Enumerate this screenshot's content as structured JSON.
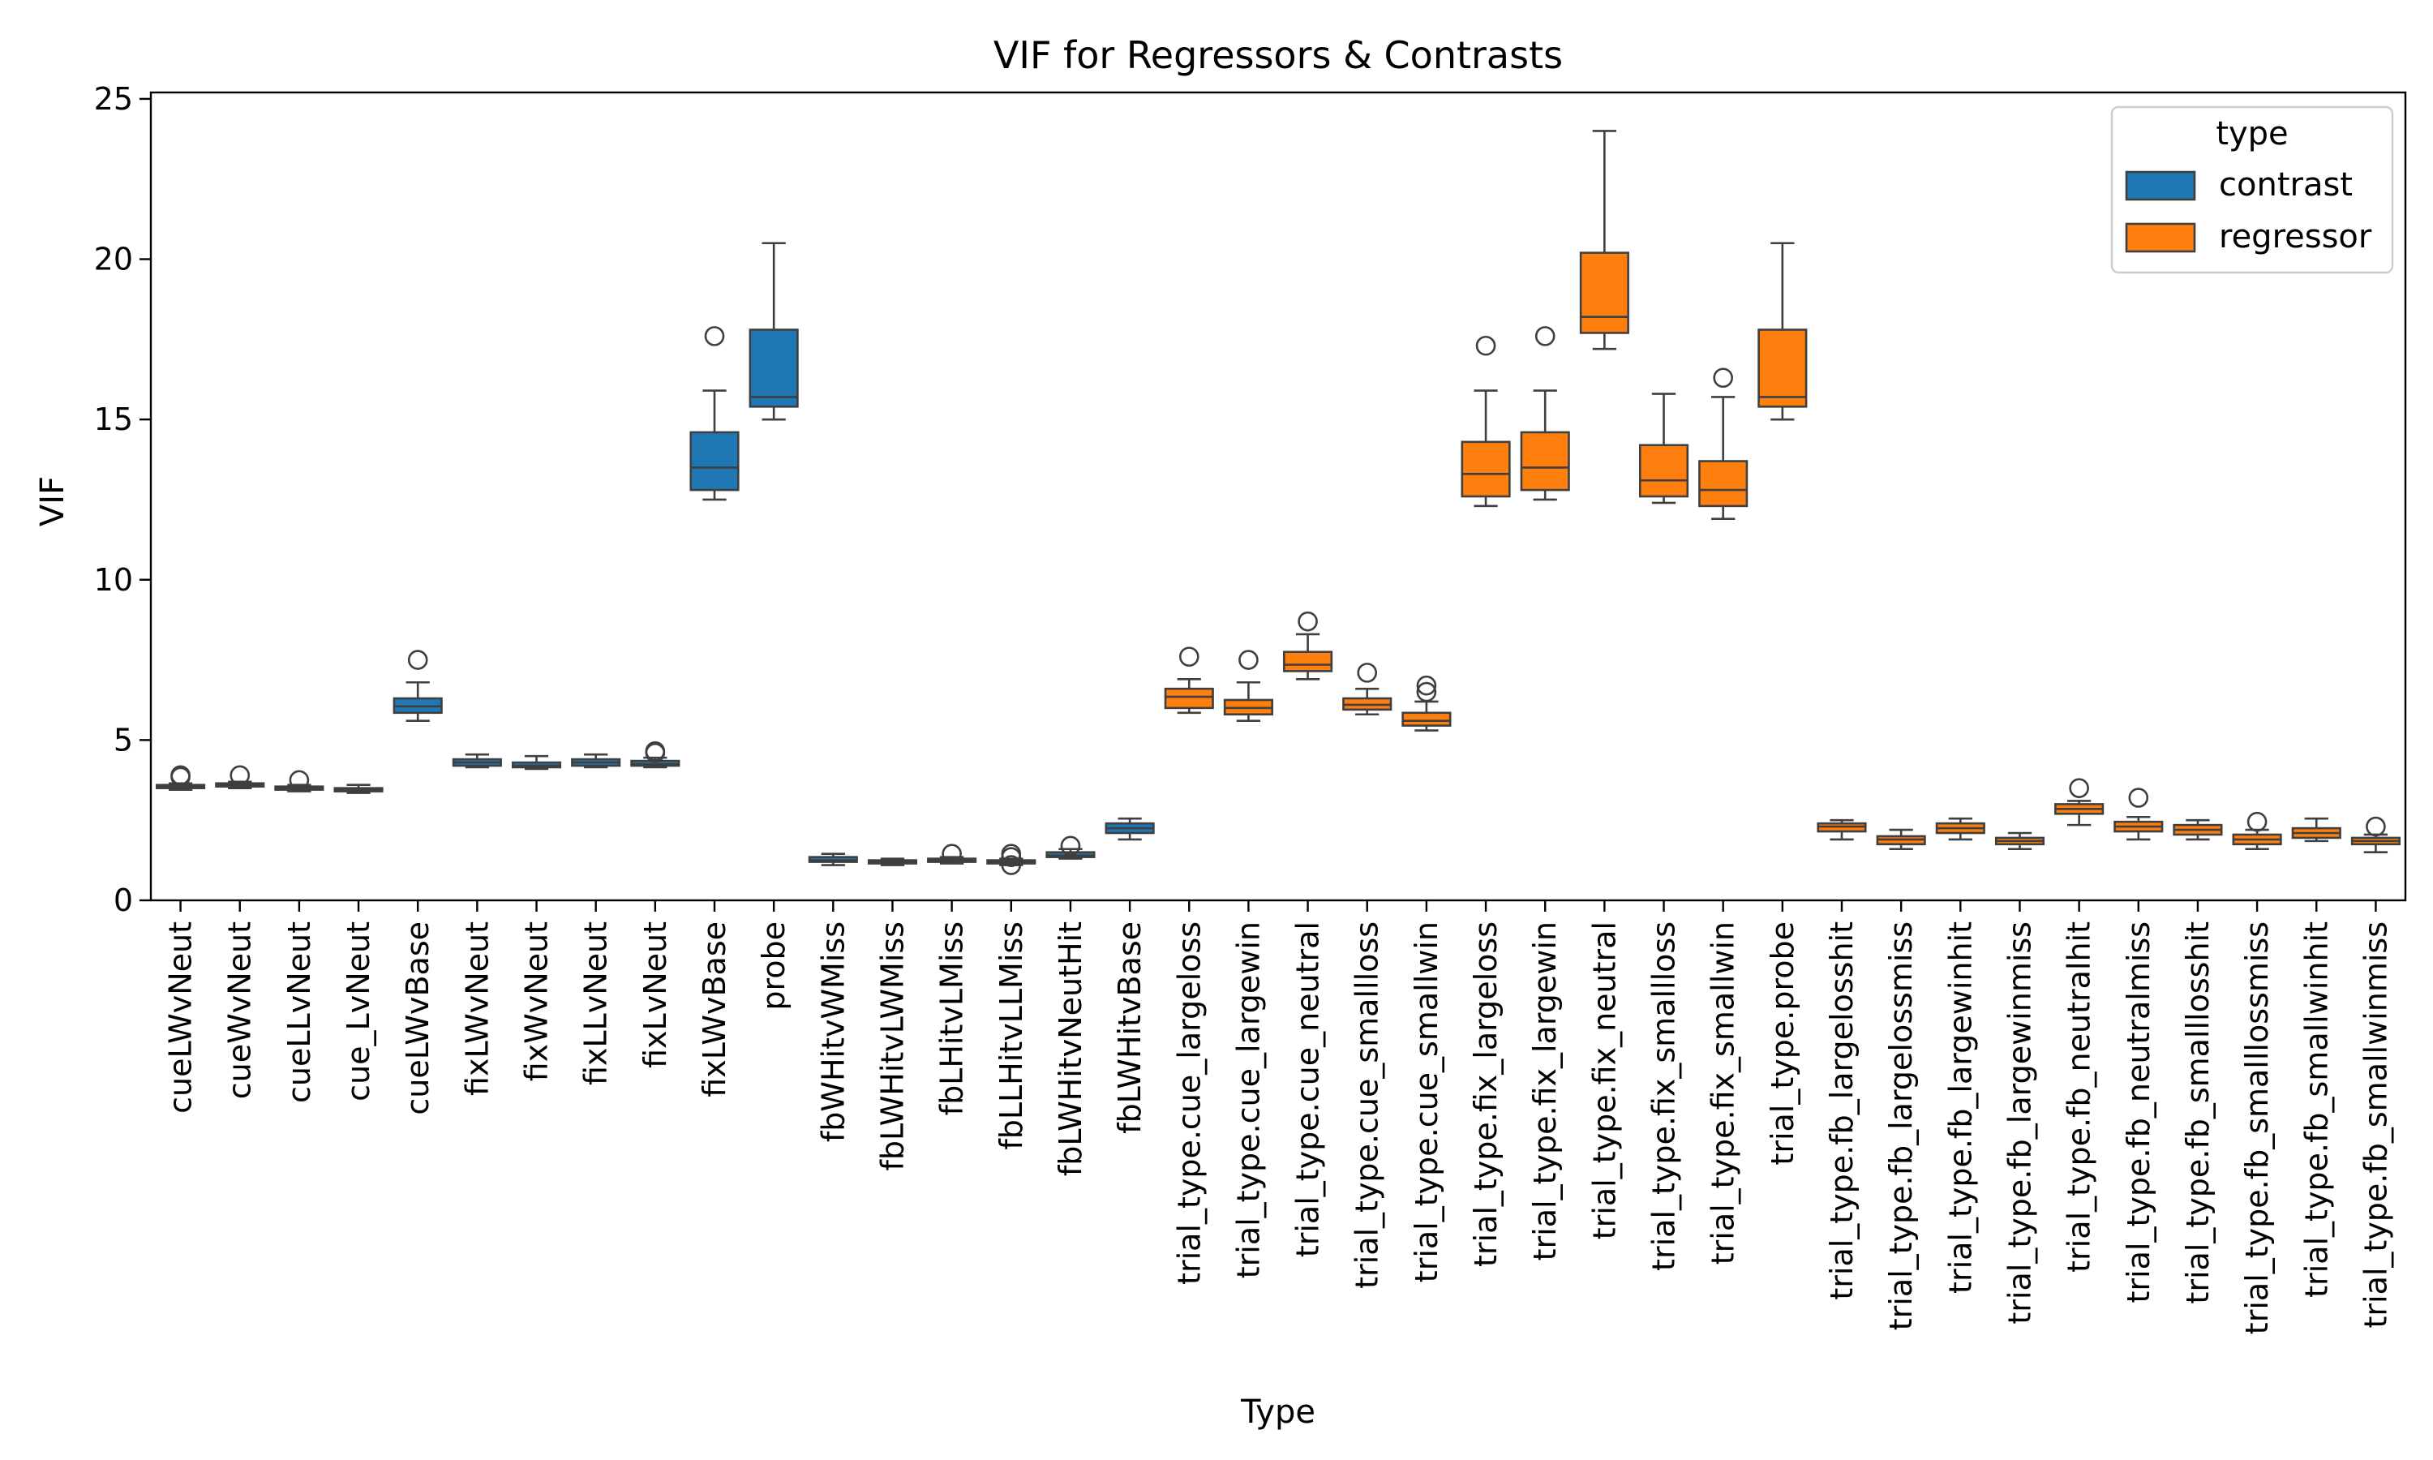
{
  "chart_data": {
    "type": "box",
    "title": "VIF for Regressors & Contrasts",
    "xlabel": "Type",
    "ylabel": "VIF",
    "ylim": [
      0,
      25.2
    ],
    "yticks": [
      0,
      5,
      10,
      15,
      20,
      25
    ],
    "grid": false,
    "legend": {
      "title": "type",
      "position": "top-right",
      "entries": [
        {
          "name": "contrast",
          "color": "#1f77b4"
        },
        {
          "name": "regressor",
          "color": "#ff7f0e"
        }
      ]
    },
    "boxes": [
      {
        "label": "cueLWvNeut",
        "type": "contrast",
        "min": 3.45,
        "q1": 3.5,
        "median": 3.55,
        "q3": 3.6,
        "max": 3.65,
        "outliers": [
          3.85,
          3.9
        ]
      },
      {
        "label": "cueWvNeut",
        "type": "contrast",
        "min": 3.5,
        "q1": 3.55,
        "median": 3.6,
        "q3": 3.65,
        "max": 3.7,
        "outliers": [
          3.9
        ]
      },
      {
        "label": "cueLLvNeut",
        "type": "contrast",
        "min": 3.4,
        "q1": 3.45,
        "median": 3.5,
        "q3": 3.55,
        "max": 3.6,
        "outliers": [
          3.75
        ]
      },
      {
        "label": "cue_LvNeut",
        "type": "contrast",
        "min": 3.35,
        "q1": 3.4,
        "median": 3.45,
        "q3": 3.5,
        "max": 3.6,
        "outliers": []
      },
      {
        "label": "cueLWvBase",
        "type": "contrast",
        "min": 5.6,
        "q1": 5.85,
        "median": 6.05,
        "q3": 6.3,
        "max": 6.8,
        "outliers": [
          7.5
        ]
      },
      {
        "label": "fixLWvNeut",
        "type": "contrast",
        "min": 4.15,
        "q1": 4.2,
        "median": 4.3,
        "q3": 4.4,
        "max": 4.55,
        "outliers": []
      },
      {
        "label": "fixWvNeut",
        "type": "contrast",
        "min": 4.1,
        "q1": 4.15,
        "median": 4.2,
        "q3": 4.3,
        "max": 4.5,
        "outliers": []
      },
      {
        "label": "fixLLvNeut",
        "type": "contrast",
        "min": 4.15,
        "q1": 4.2,
        "median": 4.3,
        "q3": 4.4,
        "max": 4.55,
        "outliers": []
      },
      {
        "label": "fixLvNeut",
        "type": "contrast",
        "min": 4.15,
        "q1": 4.2,
        "median": 4.25,
        "q3": 4.35,
        "max": 4.45,
        "outliers": [
          4.6,
          4.65
        ]
      },
      {
        "label": "fixLWvBase",
        "type": "contrast",
        "min": 12.5,
        "q1": 12.8,
        "median": 13.5,
        "q3": 14.6,
        "max": 15.9,
        "outliers": [
          17.6
        ]
      },
      {
        "label": "probe",
        "type": "contrast",
        "min": 15.0,
        "q1": 15.4,
        "median": 15.7,
        "q3": 17.8,
        "max": 20.5,
        "outliers": []
      },
      {
        "label": "fbWHitvWMiss",
        "type": "contrast",
        "min": 1.1,
        "q1": 1.2,
        "median": 1.25,
        "q3": 1.35,
        "max": 1.45,
        "outliers": []
      },
      {
        "label": "fbLWHitvLWMiss",
        "type": "contrast",
        "min": 1.1,
        "q1": 1.15,
        "median": 1.2,
        "q3": 1.25,
        "max": 1.3,
        "outliers": []
      },
      {
        "label": "fbLHitvLMiss",
        "type": "contrast",
        "min": 1.15,
        "q1": 1.2,
        "median": 1.25,
        "q3": 1.3,
        "max": 1.35,
        "outliers": [
          1.45
        ]
      },
      {
        "label": "fbLLHitvLLMiss",
        "type": "contrast",
        "min": 1.1,
        "q1": 1.15,
        "median": 1.2,
        "q3": 1.25,
        "max": 1.3,
        "outliers": [
          1.1,
          1.35,
          1.45
        ]
      },
      {
        "label": "fbLWHitvNeutHit",
        "type": "contrast",
        "min": 1.3,
        "q1": 1.35,
        "median": 1.4,
        "q3": 1.5,
        "max": 1.6,
        "outliers": [
          1.7
        ]
      },
      {
        "label": "fbLWHitvBase",
        "type": "contrast",
        "min": 1.9,
        "q1": 2.1,
        "median": 2.25,
        "q3": 2.4,
        "max": 2.55,
        "outliers": []
      },
      {
        "label": "trial_type.cue_largeloss",
        "type": "regressor",
        "min": 5.85,
        "q1": 6.0,
        "median": 6.35,
        "q3": 6.6,
        "max": 6.9,
        "outliers": [
          7.6
        ]
      },
      {
        "label": "trial_type.cue_largewin",
        "type": "regressor",
        "min": 5.6,
        "q1": 5.8,
        "median": 6.0,
        "q3": 6.25,
        "max": 6.8,
        "outliers": [
          7.5
        ]
      },
      {
        "label": "trial_type.cue_neutral",
        "type": "regressor",
        "min": 6.9,
        "q1": 7.15,
        "median": 7.35,
        "q3": 7.75,
        "max": 8.3,
        "outliers": [
          8.7
        ]
      },
      {
        "label": "trial_type.cue_smallloss",
        "type": "regressor",
        "min": 5.8,
        "q1": 5.95,
        "median": 6.1,
        "q3": 6.3,
        "max": 6.6,
        "outliers": [
          7.1
        ]
      },
      {
        "label": "trial_type.cue_smallwin",
        "type": "regressor",
        "min": 5.3,
        "q1": 5.45,
        "median": 5.6,
        "q3": 5.85,
        "max": 6.2,
        "outliers": [
          6.5,
          6.7
        ]
      },
      {
        "label": "trial_type.fix_largeloss",
        "type": "regressor",
        "min": 12.3,
        "q1": 12.6,
        "median": 13.3,
        "q3": 14.3,
        "max": 15.9,
        "outliers": [
          17.3
        ]
      },
      {
        "label": "trial_type.fix_largewin",
        "type": "regressor",
        "min": 12.5,
        "q1": 12.8,
        "median": 13.5,
        "q3": 14.6,
        "max": 15.9,
        "outliers": [
          17.6
        ]
      },
      {
        "label": "trial_type.fix_neutral",
        "type": "regressor",
        "min": 17.2,
        "q1": 17.7,
        "median": 18.2,
        "q3": 20.2,
        "max": 24.0,
        "outliers": []
      },
      {
        "label": "trial_type.fix_smallloss",
        "type": "regressor",
        "min": 12.4,
        "q1": 12.6,
        "median": 13.1,
        "q3": 14.2,
        "max": 15.8,
        "outliers": []
      },
      {
        "label": "trial_type.fix_smallwin",
        "type": "regressor",
        "min": 11.9,
        "q1": 12.3,
        "median": 12.8,
        "q3": 13.7,
        "max": 15.7,
        "outliers": [
          16.3
        ]
      },
      {
        "label": "trial_type.probe",
        "type": "regressor",
        "min": 15.0,
        "q1": 15.4,
        "median": 15.7,
        "q3": 17.8,
        "max": 20.5,
        "outliers": []
      },
      {
        "label": "trial_type.fb_largelosshit",
        "type": "regressor",
        "min": 1.9,
        "q1": 2.15,
        "median": 2.3,
        "q3": 2.4,
        "max": 2.5,
        "outliers": []
      },
      {
        "label": "trial_type.fb_largelossmiss",
        "type": "regressor",
        "min": 1.6,
        "q1": 1.75,
        "median": 1.9,
        "q3": 2.0,
        "max": 2.2,
        "outliers": []
      },
      {
        "label": "trial_type.fb_largewinhit",
        "type": "regressor",
        "min": 1.9,
        "q1": 2.1,
        "median": 2.25,
        "q3": 2.4,
        "max": 2.55,
        "outliers": []
      },
      {
        "label": "trial_type.fb_largewinmiss",
        "type": "regressor",
        "min": 1.6,
        "q1": 1.75,
        "median": 1.85,
        "q3": 1.95,
        "max": 2.1,
        "outliers": []
      },
      {
        "label": "trial_type.fb_neutralhit",
        "type": "regressor",
        "min": 2.35,
        "q1": 2.7,
        "median": 2.85,
        "q3": 3.0,
        "max": 3.1,
        "outliers": [
          3.5
        ]
      },
      {
        "label": "trial_type.fb_neutralmiss",
        "type": "regressor",
        "min": 1.9,
        "q1": 2.15,
        "median": 2.3,
        "q3": 2.45,
        "max": 2.6,
        "outliers": [
          3.2
        ]
      },
      {
        "label": "trial_type.fb_smalllosshit",
        "type": "regressor",
        "min": 1.9,
        "q1": 2.05,
        "median": 2.2,
        "q3": 2.35,
        "max": 2.5,
        "outliers": []
      },
      {
        "label": "trial_type.fb_smalllossmiss",
        "type": "regressor",
        "min": 1.6,
        "q1": 1.75,
        "median": 1.9,
        "q3": 2.05,
        "max": 2.2,
        "outliers": [
          2.45
        ]
      },
      {
        "label": "trial_type.fb_smallwinhit",
        "type": "regressor",
        "min": 1.85,
        "q1": 1.95,
        "median": 2.1,
        "q3": 2.25,
        "max": 2.55,
        "outliers": []
      },
      {
        "label": "trial_type.fb_smallwinmiss",
        "type": "regressor",
        "min": 1.5,
        "q1": 1.75,
        "median": 1.85,
        "q3": 1.95,
        "max": 2.05,
        "outliers": [
          2.3
        ]
      }
    ]
  }
}
